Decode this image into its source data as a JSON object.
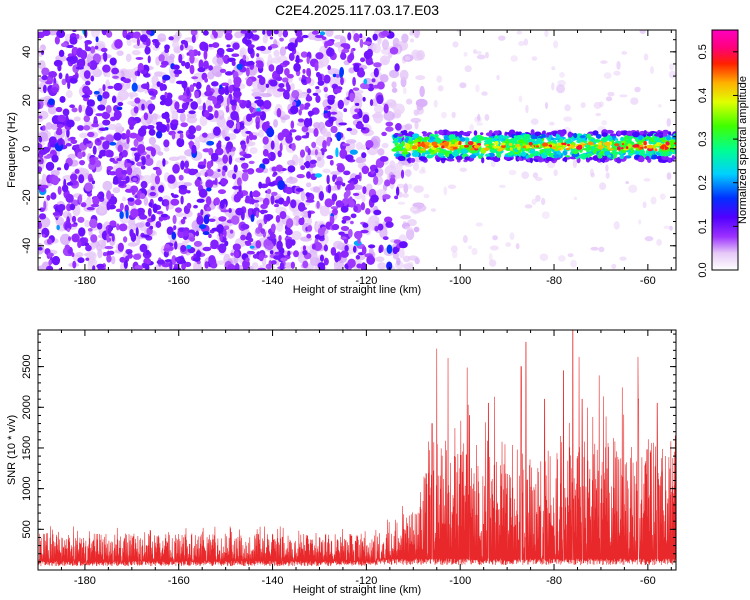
{
  "title": "C2E4.2025.117.03.17.E03",
  "chart_data": [
    {
      "type": "heatmap",
      "xlabel": "Height of straight line (km)",
      "ylabel": "Frequency (Hz)",
      "xlim": [
        -190,
        -54
      ],
      "ylim": [
        -50,
        49
      ],
      "xticks": [
        -180,
        -160,
        -140,
        -120,
        -100,
        -80,
        -60
      ],
      "yticks": [
        -40,
        -20,
        0,
        20,
        40
      ],
      "noise_region_x": [
        -190,
        -112
      ],
      "signal_region_x": [
        -114,
        -54
      ],
      "signal_band_freq_hz": [
        -5,
        7
      ],
      "signal_center_freq_hz": 1,
      "colorbar": {
        "label": "Normalized spectral amplitude",
        "range": [
          0.0,
          0.55
        ],
        "ticks": [
          0.0,
          0.1,
          0.2,
          0.3,
          0.4,
          0.5
        ],
        "colormap": "rainbow (white to violet to blue to cyan to green to yellow to red to magenta)"
      },
      "grid": false
    },
    {
      "type": "line",
      "xlabel": "Height of straight line (km)",
      "ylabel": "SNR (10 * v/v)",
      "xlim": [
        -190,
        -54
      ],
      "ylim": [
        0,
        2950
      ],
      "xticks": [
        -180,
        -160,
        -140,
        -120,
        -100,
        -80,
        -60
      ],
      "yticks": [
        500,
        1000,
        1500,
        2000,
        2500
      ],
      "series_color": "#e8282a",
      "segments": [
        {
          "x": [
            -190,
            -118
          ],
          "typical_min": 80,
          "typical_max": 450,
          "peak": 540
        },
        {
          "x": [
            -118,
            -108
          ],
          "typical_min": 100,
          "typical_max": 800,
          "peak": 1100
        },
        {
          "x": [
            -108,
            -54
          ],
          "typical_min": 100,
          "typical_max": 1600,
          "peak": 2950
        }
      ],
      "notable_peaks": [
        {
          "x": -106,
          "y": 1800
        },
        {
          "x": -98,
          "y": 1900
        },
        {
          "x": -94,
          "y": 2050
        },
        {
          "x": -87,
          "y": 2500
        },
        {
          "x": -86,
          "y": 2800
        },
        {
          "x": -82,
          "y": 2100
        },
        {
          "x": -78,
          "y": 2450
        },
        {
          "x": -76,
          "y": 2950
        },
        {
          "x": -74,
          "y": 2100
        },
        {
          "x": -62,
          "y": 2100
        },
        {
          "x": -58,
          "y": 2050
        }
      ],
      "grid": false
    }
  ]
}
